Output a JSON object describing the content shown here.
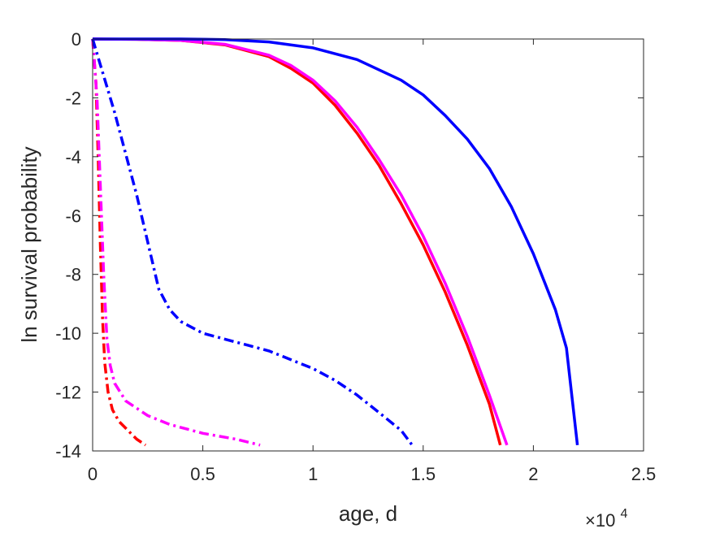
{
  "chart_data": {
    "type": "line",
    "title": "",
    "xlabel": "age, d",
    "ylabel": "ln survival probability",
    "x_multiplier_label": "×10",
    "x_multiplier_exponent": "4",
    "xlim": [
      0,
      25000
    ],
    "ylim": [
      -14,
      0
    ],
    "x_ticks": [
      0,
      5000,
      10000,
      15000,
      20000,
      25000
    ],
    "x_tick_labels": [
      "0",
      "0.5",
      "1",
      "1.5",
      "2",
      "2.5"
    ],
    "y_ticks": [
      0,
      -2,
      -4,
      -6,
      -8,
      -10,
      -12,
      -14
    ],
    "y_tick_labels": [
      "0",
      "-2",
      "-4",
      "-6",
      "-8",
      "-10",
      "-12",
      "-14"
    ],
    "grid": false,
    "legend": "none",
    "series": [
      {
        "color": "#ff0000",
        "style": "solid",
        "points": [
          [
            0,
            0
          ],
          [
            2000,
            -0.01
          ],
          [
            4000,
            -0.05
          ],
          [
            6000,
            -0.2
          ],
          [
            8000,
            -0.6
          ],
          [
            9000,
            -1.0
          ],
          [
            10000,
            -1.5
          ],
          [
            11000,
            -2.25
          ],
          [
            12000,
            -3.2
          ],
          [
            13000,
            -4.3
          ],
          [
            14000,
            -5.6
          ],
          [
            15000,
            -7.0
          ],
          [
            16000,
            -8.6
          ],
          [
            17000,
            -10.4
          ],
          [
            18000,
            -12.4
          ],
          [
            18500,
            -13.8
          ]
        ]
      },
      {
        "color": "#ff00ff",
        "style": "solid",
        "points": [
          [
            0,
            0
          ],
          [
            2000,
            -0.01
          ],
          [
            4000,
            -0.05
          ],
          [
            6000,
            -0.18
          ],
          [
            8000,
            -0.55
          ],
          [
            9000,
            -0.9
          ],
          [
            10000,
            -1.4
          ],
          [
            11000,
            -2.1
          ],
          [
            12000,
            -3.0
          ],
          [
            13000,
            -4.1
          ],
          [
            14000,
            -5.3
          ],
          [
            15000,
            -6.7
          ],
          [
            16000,
            -8.3
          ],
          [
            17000,
            -10.1
          ],
          [
            18000,
            -12.1
          ],
          [
            18800,
            -13.8
          ]
        ]
      },
      {
        "color": "#0000ff",
        "style": "solid",
        "points": [
          [
            0,
            0
          ],
          [
            4000,
            0
          ],
          [
            6000,
            -0.02
          ],
          [
            8000,
            -0.1
          ],
          [
            10000,
            -0.3
          ],
          [
            12000,
            -0.7
          ],
          [
            14000,
            -1.4
          ],
          [
            15000,
            -1.9
          ],
          [
            16000,
            -2.6
          ],
          [
            17000,
            -3.4
          ],
          [
            18000,
            -4.4
          ],
          [
            19000,
            -5.7
          ],
          [
            20000,
            -7.3
          ],
          [
            21000,
            -9.2
          ],
          [
            21500,
            -10.5
          ],
          [
            22000,
            -13.8
          ]
        ]
      },
      {
        "color": "#ff0000",
        "style": "dashdot",
        "points": [
          [
            0,
            0
          ],
          [
            150,
            -1.5
          ],
          [
            250,
            -4.0
          ],
          [
            350,
            -7.0
          ],
          [
            450,
            -9.5
          ],
          [
            550,
            -11.0
          ],
          [
            700,
            -12.0
          ],
          [
            900,
            -12.6
          ],
          [
            1200,
            -13.0
          ],
          [
            1600,
            -13.3
          ],
          [
            2000,
            -13.6
          ],
          [
            2400,
            -13.8
          ]
        ]
      },
      {
        "color": "#ff00ff",
        "style": "dashdot",
        "points": [
          [
            0,
            0
          ],
          [
            200,
            -2.0
          ],
          [
            350,
            -5.0
          ],
          [
            500,
            -8.0
          ],
          [
            650,
            -10.2
          ],
          [
            800,
            -11.1
          ],
          [
            1000,
            -11.7
          ],
          [
            1500,
            -12.3
          ],
          [
            2500,
            -12.8
          ],
          [
            3500,
            -13.1
          ],
          [
            5000,
            -13.4
          ],
          [
            6500,
            -13.6
          ],
          [
            7600,
            -13.8
          ]
        ]
      },
      {
        "color": "#0000ff",
        "style": "dashdot",
        "points": [
          [
            0,
            0
          ],
          [
            1000,
            -2.5
          ],
          [
            2000,
            -5.3
          ],
          [
            2500,
            -6.9
          ],
          [
            3000,
            -8.5
          ],
          [
            3500,
            -9.2
          ],
          [
            4000,
            -9.6
          ],
          [
            5000,
            -10.0
          ],
          [
            6000,
            -10.2
          ],
          [
            7000,
            -10.4
          ],
          [
            8000,
            -10.6
          ],
          [
            9000,
            -10.9
          ],
          [
            10000,
            -11.2
          ],
          [
            11000,
            -11.6
          ],
          [
            12000,
            -12.1
          ],
          [
            13000,
            -12.7
          ],
          [
            14000,
            -13.3
          ],
          [
            14500,
            -13.8
          ]
        ]
      }
    ]
  }
}
